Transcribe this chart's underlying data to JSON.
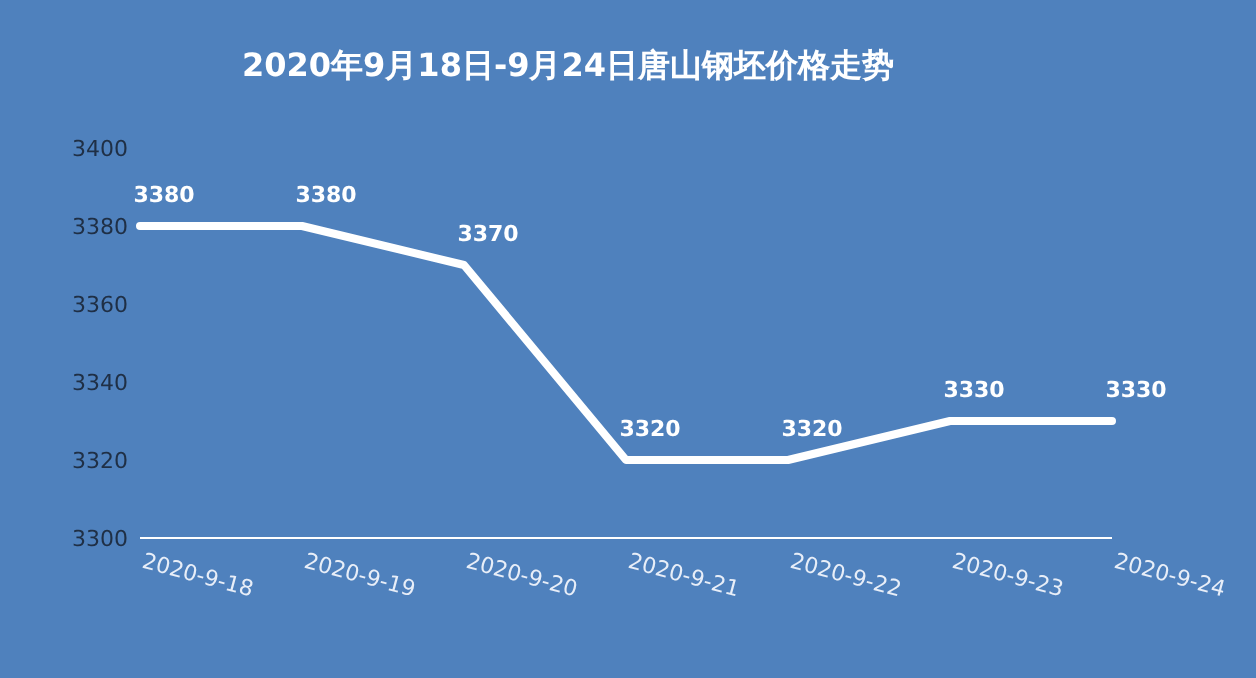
{
  "chart_data": {
    "type": "line",
    "title": "2020年9月18日-9月24日唐山钢坯价格走势",
    "categories": [
      "2020-9-18",
      "2020-9-19",
      "2020-9-20",
      "2020-9-21",
      "2020-9-22",
      "2020-9-23",
      "2020-9-24"
    ],
    "values": [
      3380,
      3380,
      3370,
      3320,
      3320,
      3330,
      3330
    ],
    "color": "#ffffff",
    "ylim": [
      3300,
      3400
    ],
    "yticks": [
      3300,
      3320,
      3340,
      3360,
      3380,
      3400
    ],
    "data_labels": true
  }
}
